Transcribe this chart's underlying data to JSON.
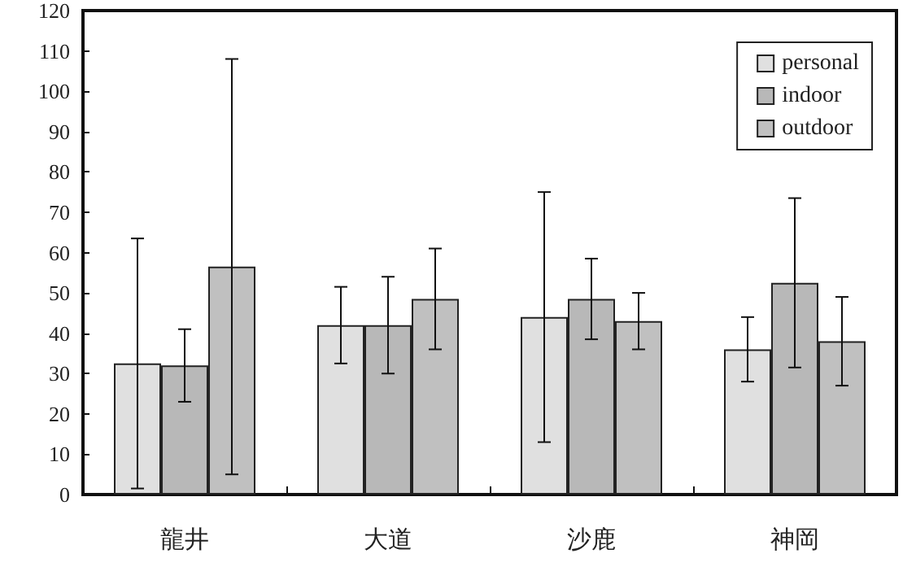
{
  "chart_data": {
    "type": "bar",
    "categories": [
      "龍井",
      "大道",
      "沙鹿",
      "神岡"
    ],
    "series": [
      {
        "name": "personal",
        "color": "#e0e0e0",
        "values": [
          32.5,
          42,
          44,
          36
        ],
        "errors": [
          31,
          9.5,
          31,
          8
        ]
      },
      {
        "name": "indoor",
        "color": "#b8b8b8",
        "values": [
          32,
          42,
          48.5,
          52.5
        ],
        "errors": [
          9,
          12,
          10,
          21
        ]
      },
      {
        "name": "outdoor",
        "color": "#c0c0c0",
        "values": [
          56.5,
          48.5,
          43,
          38
        ],
        "errors": [
          51.5,
          12.5,
          7,
          11
        ]
      }
    ],
    "ylim": [
      0,
      120
    ],
    "yticks": [
      0,
      10,
      20,
      30,
      40,
      50,
      60,
      70,
      80,
      90,
      100,
      110,
      120
    ],
    "grid": false,
    "legend": "top right"
  }
}
